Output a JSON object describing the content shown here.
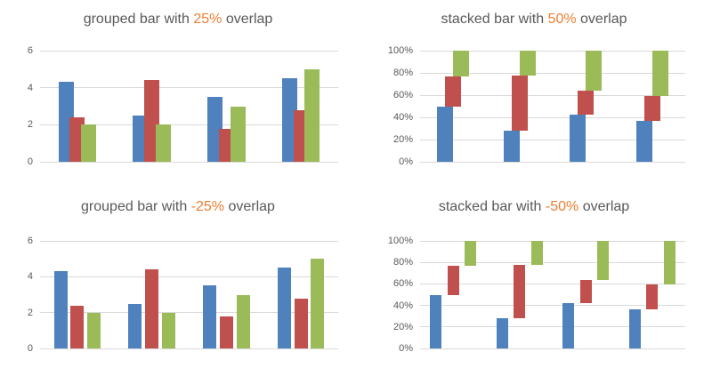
{
  "page": {
    "background": "#FFFFFF",
    "colors": {
      "title_grey": "#595959",
      "accent_orange": "#ED7D31",
      "series_blue": "#4F81BD",
      "series_red": "#C0504D",
      "series_green": "#9BBB59",
      "gridline": "#D9D9D9",
      "tick_label_grey": "#595959"
    }
  },
  "chart_data": [
    {
      "type": "bar",
      "variant": "grouped",
      "overlap": 0.25,
      "title": {
        "before": "grouped bar with ",
        "accent": "25%",
        "after": " overlap"
      },
      "ytick_labels": [
        "0",
        "2",
        "4",
        "6"
      ],
      "ylim": [
        0,
        6
      ],
      "grid": true,
      "legend": "none",
      "x_axis_labels": "none",
      "series": [
        {
          "name": "blue",
          "color": "#4F81BD",
          "values": [
            4.3,
            2.5,
            3.5,
            4.5
          ]
        },
        {
          "name": "red",
          "color": "#C0504D",
          "values": [
            2.4,
            4.4,
            1.8,
            2.8
          ]
        },
        {
          "name": "green",
          "color": "#9BBB59",
          "values": [
            2.0,
            2.0,
            3.0,
            5.0
          ]
        }
      ]
    },
    {
      "type": "bar",
      "variant": "stacked100",
      "overlap": 0.5,
      "title": {
        "before": "stacked bar with ",
        "accent": "50%",
        "after": " overlap"
      },
      "ytick_labels": [
        "0%",
        "20%",
        "40%",
        "60%",
        "80%",
        "100%"
      ],
      "ylim": [
        0,
        1
      ],
      "grid": true,
      "legend": "none",
      "x_axis_labels": "none",
      "stacked_percent_ranges": [
        {
          "blue": "0-49%",
          "red": "49-77%",
          "green": "77-100%"
        },
        {
          "blue": "0-28%",
          "red": "28-78%",
          "green": "78-100%"
        },
        {
          "blue": "0-42%",
          "red": "42-64%",
          "green": "64-100%"
        },
        {
          "blue": "0-37%",
          "red": "37-59%",
          "green": "59-100%"
        }
      ],
      "series": [
        {
          "name": "blue",
          "color": "#4F81BD",
          "values": [
            4.3,
            2.5,
            3.5,
            4.5
          ]
        },
        {
          "name": "red",
          "color": "#C0504D",
          "values": [
            2.4,
            4.4,
            1.8,
            2.8
          ]
        },
        {
          "name": "green",
          "color": "#9BBB59",
          "values": [
            2.0,
            2.0,
            3.0,
            5.0
          ]
        }
      ]
    },
    {
      "type": "bar",
      "variant": "grouped",
      "overlap": -0.25,
      "title": {
        "before": "grouped bar with ",
        "accent": "-25%",
        "after": " overlap"
      },
      "ytick_labels": [
        "0",
        "2",
        "4",
        "6"
      ],
      "ylim": [
        0,
        6
      ],
      "grid": true,
      "legend": "none",
      "x_axis_labels": "none",
      "series": [
        {
          "name": "blue",
          "color": "#4F81BD",
          "values": [
            4.3,
            2.5,
            3.5,
            4.5
          ]
        },
        {
          "name": "red",
          "color": "#C0504D",
          "values": [
            2.4,
            4.4,
            1.8,
            2.8
          ]
        },
        {
          "name": "green",
          "color": "#9BBB59",
          "values": [
            2.0,
            2.0,
            3.0,
            5.0
          ]
        }
      ]
    },
    {
      "type": "bar",
      "variant": "stacked100",
      "overlap": -0.5,
      "title": {
        "before": "stacked bar with ",
        "accent": "-50%",
        "after": " overlap"
      },
      "ytick_labels": [
        "0%",
        "20%",
        "40%",
        "60%",
        "80%",
        "100%"
      ],
      "ylim": [
        0,
        1
      ],
      "grid": true,
      "legend": "none",
      "x_axis_labels": "none",
      "stacked_percent_ranges": [
        {
          "blue": "0-49%",
          "red": "49-77%",
          "green": "77-100%"
        },
        {
          "blue": "0-28%",
          "red": "28-78%",
          "green": "78-100%"
        },
        {
          "blue": "0-42%",
          "red": "42-64%",
          "green": "64-100%"
        },
        {
          "blue": "0-37%",
          "red": "37-59%",
          "green": "59-100%"
        }
      ],
      "series": [
        {
          "name": "blue",
          "color": "#4F81BD",
          "values": [
            4.3,
            2.5,
            3.5,
            4.5
          ]
        },
        {
          "name": "red",
          "color": "#C0504D",
          "values": [
            2.4,
            4.4,
            1.8,
            2.8
          ]
        },
        {
          "name": "green",
          "color": "#9BBB59",
          "values": [
            2.0,
            2.0,
            3.0,
            5.0
          ]
        }
      ]
    }
  ]
}
